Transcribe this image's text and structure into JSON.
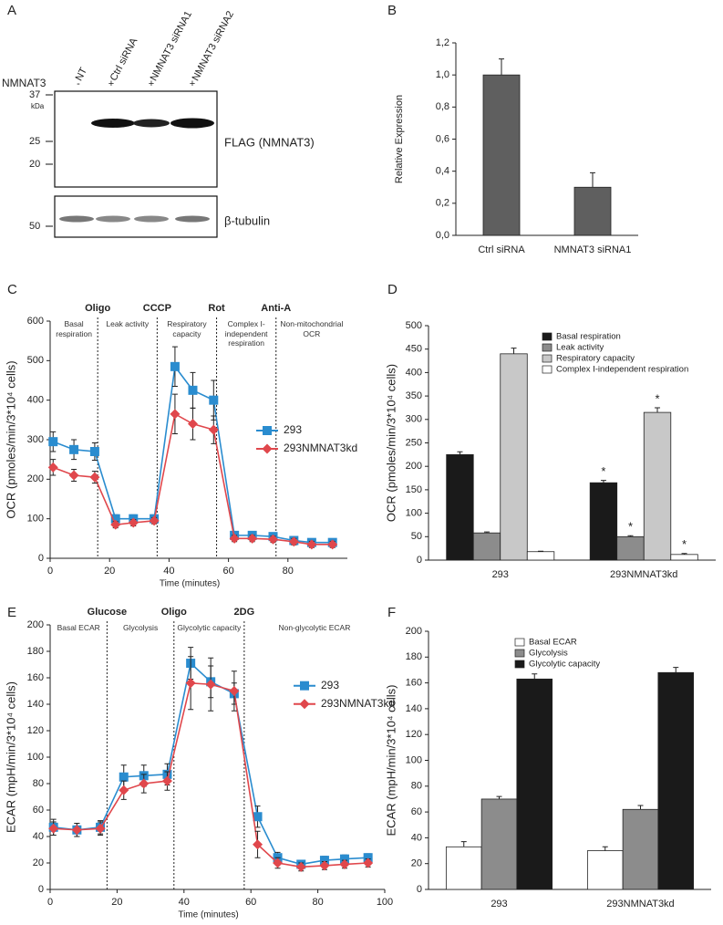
{
  "blot": {
    "panel": "A",
    "lanes": [
      "NT",
      "Ctrl siRNA",
      "NMNAT3 siRNA1",
      "NMNAT3 siRNA2"
    ],
    "row_label": "NMNAT3",
    "row_values": [
      "-",
      "+",
      "+",
      "+"
    ],
    "markers_top": [
      "37",
      "kDa",
      "25",
      "20"
    ],
    "markers_bottom": [
      "50"
    ],
    "labels": [
      "FLAG (NMNAT3)",
      "β-tubulin"
    ]
  },
  "chart_data": [
    {
      "panel": "B",
      "type": "bar",
      "ylabel": "Relative Expression",
      "categories": [
        "Ctrl siRNA",
        "NMNAT3 siRNA1"
      ],
      "values": [
        1.0,
        0.3
      ],
      "errors": [
        0.1,
        0.09
      ],
      "color": "#5f5f5f",
      "ylim": [
        0,
        1.2
      ],
      "yticks": [
        {
          "value": 0,
          "label": "0,0"
        },
        {
          "value": 0.2,
          "label": "0,2"
        },
        {
          "value": 0.4,
          "label": "0,4"
        },
        {
          "value": 0.6,
          "label": "0,6"
        },
        {
          "value": 0.8,
          "label": "0,8"
        },
        {
          "value": 1.0,
          "label": "1,0"
        },
        {
          "value": 1.2,
          "label": "1,2"
        }
      ]
    },
    {
      "panel": "C",
      "type": "line",
      "xlabel": "Time (minutes)",
      "ylabel": "OCR (pmoles/min/3*10⁴ cells)",
      "x": [
        1,
        8,
        15,
        22,
        28,
        35,
        42,
        48,
        55,
        62,
        68,
        75,
        82,
        88,
        95
      ],
      "series": [
        {
          "name": "293",
          "color": "#2a8ccf",
          "marker": "square",
          "values": [
            295,
            275,
            270,
            100,
            100,
            100,
            485,
            425,
            400,
            58,
            58,
            55,
            45,
            40,
            40
          ],
          "errors": [
            25,
            25,
            22,
            10,
            10,
            10,
            50,
            45,
            50,
            10,
            10,
            8,
            8,
            8,
            8
          ]
        },
        {
          "name": "293NMNAT3kd",
          "color": "#e0474c",
          "marker": "diamond",
          "values": [
            230,
            210,
            205,
            85,
            90,
            95,
            365,
            340,
            325,
            50,
            50,
            48,
            42,
            35,
            35
          ],
          "errors": [
            20,
            15,
            15,
            8,
            8,
            8,
            50,
            40,
            35,
            8,
            8,
            8,
            8,
            8,
            8
          ]
        }
      ],
      "xlim": [
        0,
        100
      ],
      "xticks": [
        0,
        20,
        40,
        60,
        80
      ],
      "ylim": [
        0,
        600
      ],
      "yticks": [
        0,
        100,
        200,
        300,
        400,
        500,
        600
      ],
      "legend": "center right",
      "injections": [
        {
          "x": 16,
          "label": "Oligo"
        },
        {
          "x": 36,
          "label": "CCCP"
        },
        {
          "x": 56,
          "label": "Rot"
        },
        {
          "x": 76,
          "label": "Anti-A"
        }
      ],
      "phases": [
        "Basal respiration",
        "Leak activity",
        "Respiratory capacity",
        "Complex I-independent respiration",
        "Non-mitochondrial OCR"
      ]
    },
    {
      "panel": "D",
      "type": "bar",
      "ylabel": "OCR (pmoles/min/3*10⁴ cells)",
      "categories": [
        "293",
        "293NMNAT3kd"
      ],
      "series": [
        {
          "name": "Basal respiration",
          "color": "#1a1a1a",
          "values": [
            225,
            165
          ],
          "errors": [
            6,
            5
          ],
          "significance_marks": [
            null,
            "*"
          ]
        },
        {
          "name": "Leak activity",
          "color": "#8c8c8c",
          "values": [
            58,
            50
          ],
          "errors": [
            2,
            2
          ],
          "significance_marks": [
            null,
            "*"
          ]
        },
        {
          "name": "Respiratory capacity",
          "color": "#c8c8c8",
          "values": [
            440,
            315
          ],
          "errors": [
            12,
            10
          ],
          "significance_marks": [
            null,
            "*"
          ]
        },
        {
          "name": "Complex I-independent respiration",
          "color": "#ffffff",
          "values": [
            18,
            12
          ],
          "errors": [
            1,
            2
          ],
          "significance_marks": [
            null,
            "*"
          ]
        }
      ],
      "ylim": [
        0,
        500
      ],
      "yticks": [
        0,
        50,
        100,
        150,
        200,
        250,
        300,
        350,
        400,
        450,
        500
      ],
      "legend": "upper right"
    },
    {
      "panel": "E",
      "type": "line",
      "xlabel": "Time (minutes)",
      "ylabel": "ECAR (mpH/min/3*10⁴ cells)",
      "x": [
        1,
        8,
        15,
        22,
        28,
        35,
        42,
        48,
        55,
        62,
        68,
        75,
        82,
        88,
        95
      ],
      "series": [
        {
          "name": "293",
          "color": "#2a8ccf",
          "marker": "square",
          "values": [
            47,
            45,
            47,
            85,
            86,
            87,
            171,
            157,
            148,
            55,
            24,
            19,
            22,
            23,
            24
          ],
          "errors": [
            6,
            5,
            5,
            9,
            8,
            8,
            12,
            12,
            8,
            8,
            4,
            3,
            3,
            3,
            3
          ]
        },
        {
          "name": "293NMNAT3kd",
          "color": "#e0474c",
          "marker": "diamond",
          "values": [
            46,
            45,
            46,
            75,
            80,
            82,
            156,
            155,
            150,
            34,
            20,
            17,
            18,
            19,
            20
          ],
          "errors": [
            5,
            5,
            5,
            7,
            7,
            7,
            20,
            20,
            15,
            10,
            4,
            3,
            3,
            3,
            3
          ]
        }
      ],
      "xlim": [
        0,
        100
      ],
      "xticks": [
        0,
        20,
        40,
        60,
        80,
        100
      ],
      "ylim": [
        0,
        200
      ],
      "yticks": [
        0,
        20,
        40,
        60,
        80,
        100,
        120,
        140,
        160,
        180,
        200
      ],
      "legend": "upper right",
      "injections": [
        {
          "x": 17,
          "label": "Glucose"
        },
        {
          "x": 37,
          "label": "Oligo"
        },
        {
          "x": 58,
          "label": "2DG"
        }
      ],
      "phases": [
        "Basal ECAR",
        "Glycolysis",
        "Glycolytic capacity",
        "Non-glycolytic ECAR"
      ]
    },
    {
      "panel": "F",
      "type": "bar",
      "ylabel": "ECAR (mpH/min/3*10⁴ cells)",
      "categories": [
        "293",
        "293NMNAT3kd"
      ],
      "series": [
        {
          "name": "Basal ECAR",
          "color": "#ffffff",
          "values": [
            33,
            30
          ],
          "errors": [
            4,
            3
          ]
        },
        {
          "name": "Glycolysis",
          "color": "#8c8c8c",
          "values": [
            70,
            62
          ],
          "errors": [
            2,
            3
          ]
        },
        {
          "name": "Glycolytic capacity",
          "color": "#1a1a1a",
          "values": [
            163,
            168
          ],
          "errors": [
            4,
            4
          ]
        }
      ],
      "ylim": [
        0,
        200
      ],
      "yticks": [
        0,
        20,
        40,
        60,
        80,
        100,
        120,
        140,
        160,
        180,
        200
      ],
      "legend": "upper center"
    }
  ]
}
